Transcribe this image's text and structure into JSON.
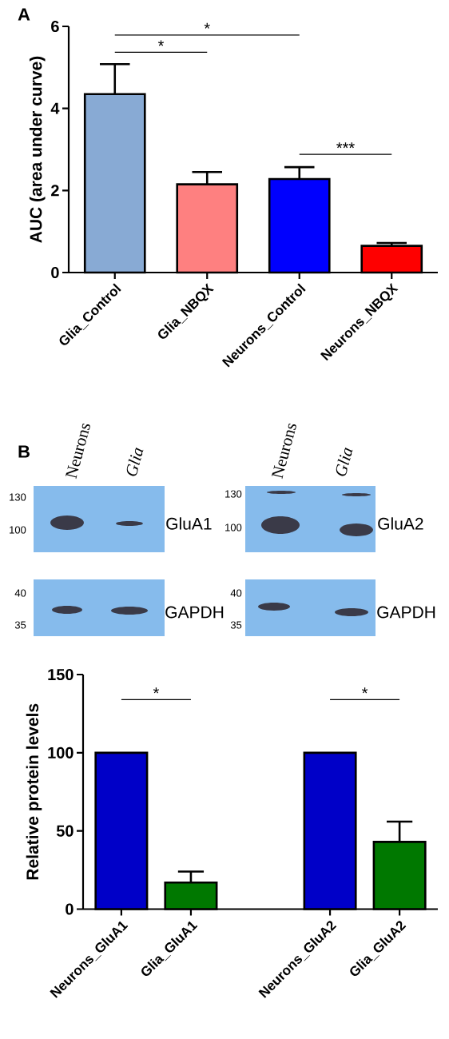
{
  "chart_data": [
    {
      "type": "bar",
      "categories": [
        "Glia_Control",
        "Glia_NBQX",
        "Neurons_Control",
        "Neurons_NBQX"
      ],
      "values": [
        4.35,
        2.15,
        2.28,
        0.65
      ],
      "colors": [
        "#88aad4",
        "#fe8080",
        "#0000fe",
        "#fe0000"
      ],
      "errors": [
        [
          4.35,
          5.08
        ],
        [
          2.15,
          2.45
        ],
        [
          2.28,
          2.57
        ],
        [
          0.65,
          0.72
        ]
      ],
      "ylabel": "AUC (area under curve)",
      "ylim": [
        0,
        6
      ],
      "yticks": [
        0,
        2,
        4,
        6
      ],
      "annotations": [
        "A",
        "*",
        "*",
        "***"
      ]
    },
    {
      "type": "bar",
      "categories": [
        "Neurons_GluA1",
        "Glia_GluA1",
        null,
        "Neurons_GluA2",
        "Glia_GluA2"
      ],
      "values": [
        100,
        17,
        null,
        100,
        43
      ],
      "colors": [
        "#0000c8",
        "#007800",
        "#000000",
        "#0000c8",
        "#007800"
      ],
      "errors": [
        null,
        [
          17,
          24
        ],
        null,
        null,
        [
          43,
          56
        ]
      ],
      "ylabel": "Relative protein levels",
      "ylim": [
        0,
        150
      ],
      "yticks": [
        0,
        50,
        100,
        150
      ],
      "annotations": [
        "B",
        "Neurons",
        "Glia",
        "Neurons",
        "Glia",
        "130",
        "100",
        "40",
        "35",
        "130",
        "100",
        "40",
        "35",
        "GluA1",
        "GAPDH",
        "GluA2",
        "GAPDH",
        "*",
        "*"
      ]
    }
  ]
}
